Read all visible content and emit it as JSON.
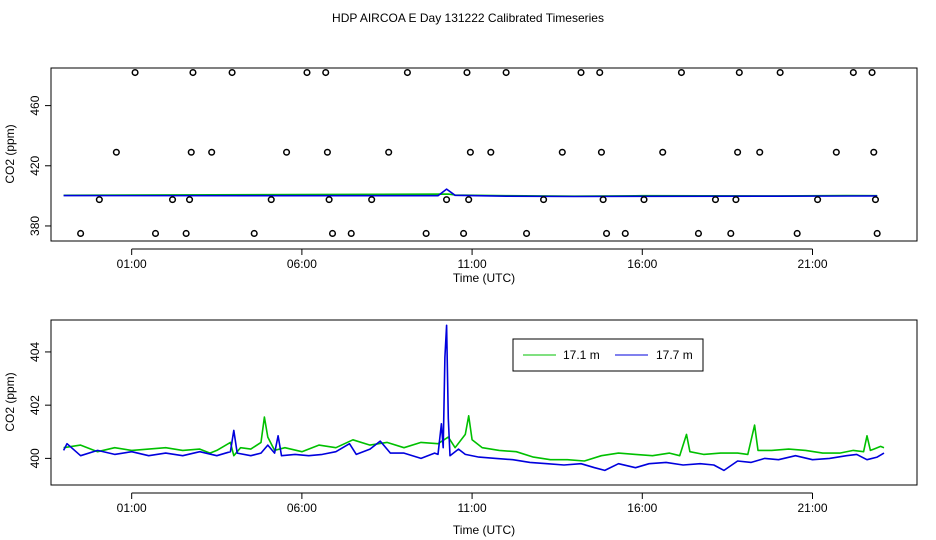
{
  "page": {
    "title": "HDP AIRCOA E  Day 131222  Calibrated Timeseries"
  },
  "chart_data": [
    {
      "type": "scatter+line",
      "xlabel": "Time (UTC)",
      "ylabel": "CO2 (ppm)",
      "x_ticks": [
        1,
        6,
        11,
        16,
        21
      ],
      "x_tick_labels": [
        "01:00",
        "06:00",
        "11:00",
        "16:00",
        "21:00"
      ],
      "xlim": [
        -1.37,
        24.07
      ],
      "y_ticks": [
        380,
        420,
        460
      ],
      "y_tick_labels": [
        "380",
        "420",
        "460"
      ],
      "ylim": [
        370,
        485
      ],
      "point_series": {
        "marker": "open-circle",
        "color": "#000000",
        "points": [
          [
            -0.5,
            375
          ],
          [
            0.05,
            397.5
          ],
          [
            0.55,
            429
          ],
          [
            1.1,
            482
          ],
          [
            1.7,
            375
          ],
          [
            2.2,
            397.5
          ],
          [
            2.6,
            375
          ],
          [
            2.7,
            397.5
          ],
          [
            2.75,
            429
          ],
          [
            2.8,
            482
          ],
          [
            3.35,
            429
          ],
          [
            3.95,
            482
          ],
          [
            4.6,
            375
          ],
          [
            5.1,
            397.5
          ],
          [
            5.55,
            429
          ],
          [
            6.15,
            482
          ],
          [
            6.7,
            482
          ],
          [
            6.75,
            429
          ],
          [
            6.8,
            397.5
          ],
          [
            6.9,
            375
          ],
          [
            7.45,
            375
          ],
          [
            8.05,
            397.5
          ],
          [
            8.55,
            429
          ],
          [
            9.1,
            482
          ],
          [
            9.65,
            375
          ],
          [
            10.25,
            397.5
          ],
          [
            10.75,
            375
          ],
          [
            10.85,
            482
          ],
          [
            10.9,
            397.5
          ],
          [
            10.95,
            429
          ],
          [
            11.55,
            429
          ],
          [
            12.0,
            482
          ],
          [
            12.6,
            375
          ],
          [
            13.1,
            397.5
          ],
          [
            13.65,
            429
          ],
          [
            14.2,
            482
          ],
          [
            14.75,
            482
          ],
          [
            14.8,
            429
          ],
          [
            14.85,
            397.5
          ],
          [
            14.95,
            375
          ],
          [
            15.5,
            375
          ],
          [
            16.05,
            397.5
          ],
          [
            16.6,
            429
          ],
          [
            17.15,
            482
          ],
          [
            17.65,
            375
          ],
          [
            18.15,
            397.5
          ],
          [
            18.6,
            375
          ],
          [
            18.75,
            397.5
          ],
          [
            18.8,
            429
          ],
          [
            18.85,
            482
          ],
          [
            19.45,
            429
          ],
          [
            20.05,
            482
          ],
          [
            20.55,
            375
          ],
          [
            21.15,
            397.5
          ],
          [
            21.7,
            429
          ],
          [
            22.2,
            482
          ],
          [
            22.75,
            482
          ],
          [
            22.8,
            429
          ],
          [
            22.85,
            397.5
          ],
          [
            22.9,
            375
          ]
        ]
      },
      "series": [
        {
          "name": "17.1 m",
          "color": "#00c000",
          "points": [
            [
              -1,
              400.4
            ],
            [
              10.3,
              401.2
            ],
            [
              10.5,
              400.6
            ],
            [
              12,
              400.1
            ],
            [
              14,
              399.8
            ],
            [
              16,
              400.1
            ],
            [
              20,
              400.0
            ],
            [
              22,
              400.2
            ],
            [
              22.9,
              400.1
            ]
          ]
        },
        {
          "name": "17.7 m",
          "color": "#0000dd",
          "points": [
            [
              -1,
              400.2
            ],
            [
              10.0,
              400.1
            ],
            [
              10.25,
              404.5
            ],
            [
              10.5,
              400.4
            ],
            [
              12,
              399.8
            ],
            [
              14,
              399.6
            ],
            [
              16,
              399.7
            ],
            [
              20,
              399.8
            ],
            [
              22,
              399.9
            ],
            [
              22.9,
              400.0
            ]
          ]
        }
      ]
    },
    {
      "type": "line",
      "xlabel": "Time (UTC)",
      "ylabel": "CO2 (ppm)",
      "x_ticks": [
        1,
        6,
        11,
        16,
        21
      ],
      "x_tick_labels": [
        "01:00",
        "06:00",
        "11:00",
        "16:00",
        "21:00"
      ],
      "xlim": [
        -1.37,
        24.07
      ],
      "y_ticks": [
        400,
        402,
        404
      ],
      "y_tick_labels": [
        "400",
        "402",
        "404"
      ],
      "ylim": [
        399.0,
        405.2
      ],
      "legend": {
        "position": "top-center",
        "entries": [
          "17.1 m",
          "17.7 m"
        ]
      },
      "series": [
        {
          "name": "17.1 m",
          "color": "#00c000",
          "points": [
            [
              -1.0,
              400.4
            ],
            [
              -0.5,
              400.5
            ],
            [
              0.0,
              400.25
            ],
            [
              0.5,
              400.4
            ],
            [
              1.0,
              400.3
            ],
            [
              1.5,
              400.35
            ],
            [
              2.0,
              400.4
            ],
            [
              2.5,
              400.3
            ],
            [
              3.0,
              400.35
            ],
            [
              3.3,
              400.2
            ],
            [
              3.5,
              400.3
            ],
            [
              3.9,
              400.6
            ],
            [
              4.0,
              400.1
            ],
            [
              4.2,
              400.4
            ],
            [
              4.5,
              400.35
            ],
            [
              4.8,
              400.6
            ],
            [
              4.9,
              401.55
            ],
            [
              5.0,
              400.8
            ],
            [
              5.2,
              400.3
            ],
            [
              5.5,
              400.4
            ],
            [
              6.0,
              400.25
            ],
            [
              6.5,
              400.5
            ],
            [
              7.0,
              400.4
            ],
            [
              7.5,
              400.7
            ],
            [
              8.0,
              400.5
            ],
            [
              8.5,
              400.6
            ],
            [
              9.0,
              400.4
            ],
            [
              9.5,
              400.6
            ],
            [
              10.0,
              400.55
            ],
            [
              10.3,
              400.8
            ],
            [
              10.5,
              400.4
            ],
            [
              10.8,
              400.9
            ],
            [
              10.9,
              401.6
            ],
            [
              11.0,
              400.7
            ],
            [
              11.3,
              400.4
            ],
            [
              11.8,
              400.3
            ],
            [
              12.3,
              400.25
            ],
            [
              12.8,
              400.05
            ],
            [
              13.3,
              399.95
            ],
            [
              13.8,
              399.95
            ],
            [
              14.3,
              399.9
            ],
            [
              14.8,
              400.1
            ],
            [
              15.3,
              400.2
            ],
            [
              15.8,
              400.15
            ],
            [
              16.3,
              400.1
            ],
            [
              16.8,
              400.2
            ],
            [
              17.1,
              400.1
            ],
            [
              17.3,
              400.9
            ],
            [
              17.4,
              400.25
            ],
            [
              17.8,
              400.15
            ],
            [
              18.3,
              400.2
            ],
            [
              18.8,
              400.2
            ],
            [
              19.1,
              400.15
            ],
            [
              19.3,
              401.25
            ],
            [
              19.4,
              400.3
            ],
            [
              19.8,
              400.3
            ],
            [
              20.3,
              400.35
            ],
            [
              20.8,
              400.3
            ],
            [
              21.3,
              400.2
            ],
            [
              21.8,
              400.2
            ],
            [
              22.2,
              400.3
            ],
            [
              22.5,
              400.25
            ],
            [
              22.6,
              400.85
            ],
            [
              22.7,
              400.3
            ],
            [
              22.8,
              400.35
            ],
            [
              23.0,
              400.45
            ],
            [
              23.1,
              400.4
            ]
          ]
        },
        {
          "name": "17.7 m",
          "color": "#0000dd",
          "points": [
            [
              -1.0,
              400.3
            ],
            [
              -0.9,
              400.55
            ],
            [
              -0.5,
              400.1
            ],
            [
              0.0,
              400.3
            ],
            [
              0.5,
              400.15
            ],
            [
              1.0,
              400.25
            ],
            [
              1.5,
              400.1
            ],
            [
              2.0,
              400.2
            ],
            [
              2.5,
              400.1
            ],
            [
              3.0,
              400.25
            ],
            [
              3.5,
              400.1
            ],
            [
              3.9,
              400.25
            ],
            [
              4.0,
              401.05
            ],
            [
              4.1,
              400.2
            ],
            [
              4.5,
              400.1
            ],
            [
              4.8,
              400.2
            ],
            [
              5.0,
              400.5
            ],
            [
              5.2,
              400.2
            ],
            [
              5.3,
              400.85
            ],
            [
              5.4,
              400.1
            ],
            [
              5.8,
              400.15
            ],
            [
              6.2,
              400.1
            ],
            [
              6.6,
              400.15
            ],
            [
              7.0,
              400.25
            ],
            [
              7.4,
              400.55
            ],
            [
              7.6,
              400.15
            ],
            [
              8.0,
              400.35
            ],
            [
              8.3,
              400.65
            ],
            [
              8.6,
              400.2
            ],
            [
              9.0,
              400.2
            ],
            [
              9.5,
              400.0
            ],
            [
              9.9,
              400.2
            ],
            [
              10.0,
              400.15
            ],
            [
              10.1,
              401.3
            ],
            [
              10.15,
              400.4
            ],
            [
              10.2,
              403.8
            ],
            [
              10.25,
              405.0
            ],
            [
              10.3,
              401.5
            ],
            [
              10.35,
              400.1
            ],
            [
              10.6,
              400.35
            ],
            [
              10.8,
              400.15
            ],
            [
              11.2,
              400.05
            ],
            [
              11.7,
              400.0
            ],
            [
              12.2,
              399.95
            ],
            [
              12.7,
              399.85
            ],
            [
              13.2,
              399.8
            ],
            [
              13.7,
              399.75
            ],
            [
              14.2,
              399.8
            ],
            [
              14.6,
              399.65
            ],
            [
              14.9,
              399.55
            ],
            [
              15.3,
              399.8
            ],
            [
              15.8,
              399.65
            ],
            [
              16.2,
              399.8
            ],
            [
              16.7,
              399.85
            ],
            [
              17.2,
              399.75
            ],
            [
              17.7,
              399.8
            ],
            [
              18.1,
              399.75
            ],
            [
              18.4,
              399.55
            ],
            [
              18.8,
              399.9
            ],
            [
              19.2,
              399.85
            ],
            [
              19.6,
              400.0
            ],
            [
              20.0,
              399.95
            ],
            [
              20.5,
              400.1
            ],
            [
              21.0,
              399.95
            ],
            [
              21.5,
              400.0
            ],
            [
              22.0,
              400.1
            ],
            [
              22.3,
              400.15
            ],
            [
              22.6,
              399.95
            ],
            [
              22.9,
              400.05
            ],
            [
              23.1,
              400.2
            ]
          ]
        }
      ]
    }
  ]
}
